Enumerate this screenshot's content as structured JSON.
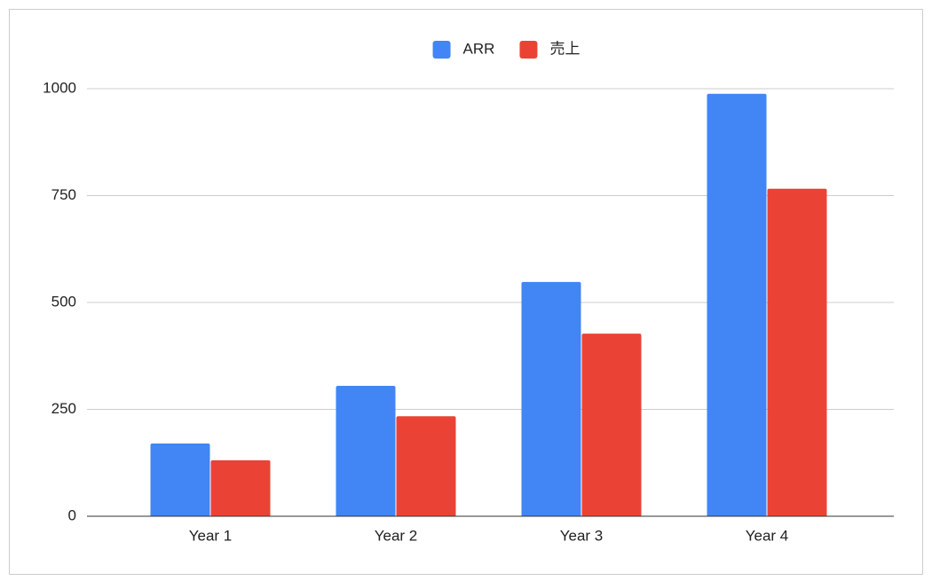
{
  "chart_data": {
    "type": "bar",
    "categories": [
      "Year 1",
      "Year 2",
      "Year 3",
      "Year 4"
    ],
    "series": [
      {
        "name": "ARR",
        "color": "#4285f4",
        "values": [
          170,
          305,
          548,
          988
        ]
      },
      {
        "name": "売上",
        "color": "#ea4335",
        "values": [
          131,
          234,
          427,
          766
        ]
      }
    ],
    "ylim": [
      0,
      1000
    ],
    "yticks": [
      0,
      250,
      500,
      750,
      1000
    ],
    "grid": true,
    "legend": "top"
  }
}
